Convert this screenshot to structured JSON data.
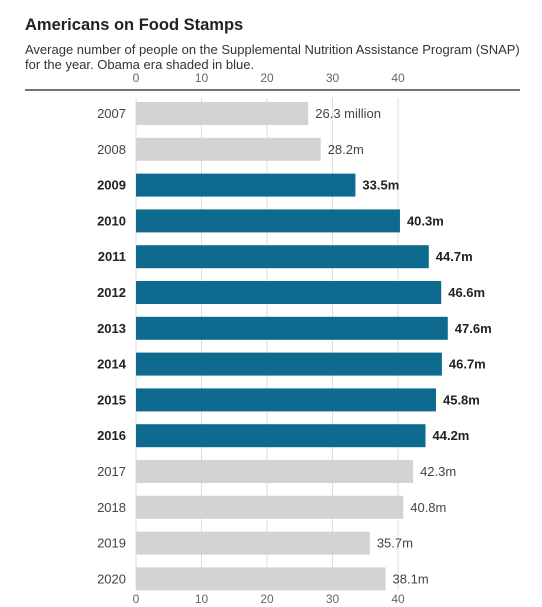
{
  "chart_data": {
    "type": "bar",
    "orientation": "horizontal",
    "title": "Americans on Food Stamps",
    "subtitle": "Average number of people on the Supplemental Nutrition Assistance Program (SNAP) for the year. Obama era shaded in blue.",
    "xlim": [
      0,
      48
    ],
    "ticks": [
      0,
      10,
      20,
      30,
      40
    ],
    "grid": true,
    "categories": [
      "2007",
      "2008",
      "2009",
      "2010",
      "2011",
      "2012",
      "2013",
      "2014",
      "2015",
      "2016",
      "2017",
      "2018",
      "2019",
      "2020"
    ],
    "values": [
      26.3,
      28.2,
      33.5,
      40.3,
      44.7,
      46.6,
      47.6,
      46.7,
      45.8,
      44.2,
      42.3,
      40.8,
      35.7,
      38.1
    ],
    "labels": [
      "26.3 million",
      "28.2m",
      "33.5m",
      "40.3m",
      "44.7m",
      "46.6m",
      "47.6m",
      "46.7m",
      "45.8m",
      "44.2m",
      "42.3m",
      "40.8m",
      "35.7m",
      "38.1m"
    ],
    "highlighted": [
      false,
      false,
      true,
      true,
      true,
      true,
      true,
      true,
      true,
      true,
      false,
      false,
      false,
      false
    ],
    "colors": {
      "highlight": "#0f6a90",
      "base": "#d3d3d3",
      "grid": "#dddddd",
      "axis": "#222222"
    }
  }
}
